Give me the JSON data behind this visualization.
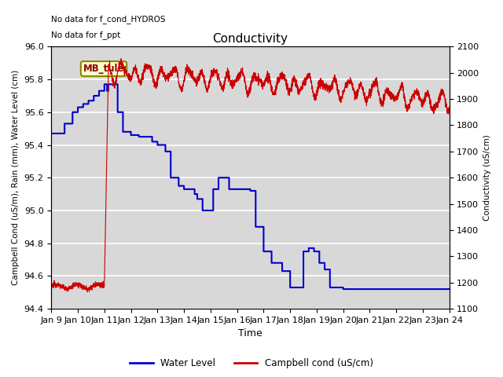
{
  "title": "Conductivity",
  "xlabel": "Time",
  "ylabel_left": "Campbell Cond (uS/m), Rain (mm), Water Level (cm)",
  "ylabel_right": "Conductivity (uS/cm)",
  "annotation1": "No data for f_cond_HYDROS",
  "annotation2": "No data for f_ppt",
  "box_label": "MB_tule",
  "ylim_left": [
    94.4,
    96.0
  ],
  "ylim_right": [
    1100,
    2100
  ],
  "background_color": "#d8d8d8",
  "fig_background": "#ffffff",
  "grid_color": "#ffffff",
  "water_level_color": "#0000cc",
  "campbell_color": "#cc0000",
  "legend_water": "Water Level",
  "legend_campbell": "Campbell cond (uS/cm)",
  "xtick_labels": [
    "Jan 9",
    "Jan 10",
    "Jan 11",
    "Jan 12",
    "Jan 13",
    "Jan 14",
    "Jan 15",
    "Jan 16",
    "Jan 17",
    "Jan 18",
    "Jan 19",
    "Jan 20",
    "Jan 21",
    "Jan 22",
    "Jan 23",
    "Jan 24"
  ],
  "xtick_positions": [
    0,
    1,
    2,
    3,
    4,
    5,
    6,
    7,
    8,
    9,
    10,
    11,
    12,
    13,
    14,
    15
  ],
  "ytick_left": [
    94.4,
    94.6,
    94.8,
    95.0,
    95.2,
    95.4,
    95.6,
    95.8,
    96.0
  ],
  "ytick_right": [
    1100,
    1200,
    1300,
    1400,
    1500,
    1600,
    1700,
    1800,
    1900,
    2000,
    2100
  ]
}
